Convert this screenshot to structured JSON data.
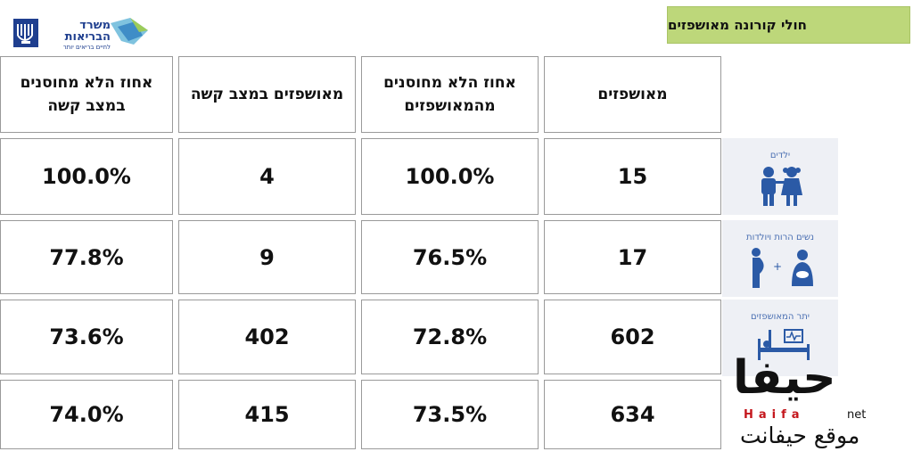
{
  "logo": {
    "name": "משרד הבריאות",
    "tagline": "לחיים בריאים יותר"
  },
  "title": "חולי קורונה מאושפזים",
  "columns": [
    "מאושפזים",
    "אחוז הלא מחוסנים מהמאושפזים",
    "מאושפזים במצב קשה",
    "אחוז הלא מחוסנים במצב קשה"
  ],
  "rows": [
    {
      "label": "ילדים",
      "icon": "children-icon",
      "values": [
        "15",
        "100.0%",
        "4",
        "100.0%"
      ]
    },
    {
      "label": "נשים הרות ויולדות",
      "icon": "pregnant-women-icon",
      "values": [
        "17",
        "76.5%",
        "9",
        "77.8%"
      ]
    },
    {
      "label": "יתר המאושפזים",
      "icon": "hospital-bed-icon",
      "values": [
        "602",
        "72.8%",
        "402",
        "73.6%"
      ]
    },
    {
      "label": "",
      "icon": "",
      "values": [
        "634",
        "73.5%",
        "415",
        "74.0%"
      ]
    }
  ],
  "watermark": {
    "arabic": "حيفا",
    "latin": "Haifa",
    "suffix": "net",
    "arabic_sub": "موقع حيفانت"
  },
  "colors": {
    "title_bg": "#bdd77a",
    "icon_blue": "#2b5aa6",
    "brand_red": "#c4161c"
  }
}
